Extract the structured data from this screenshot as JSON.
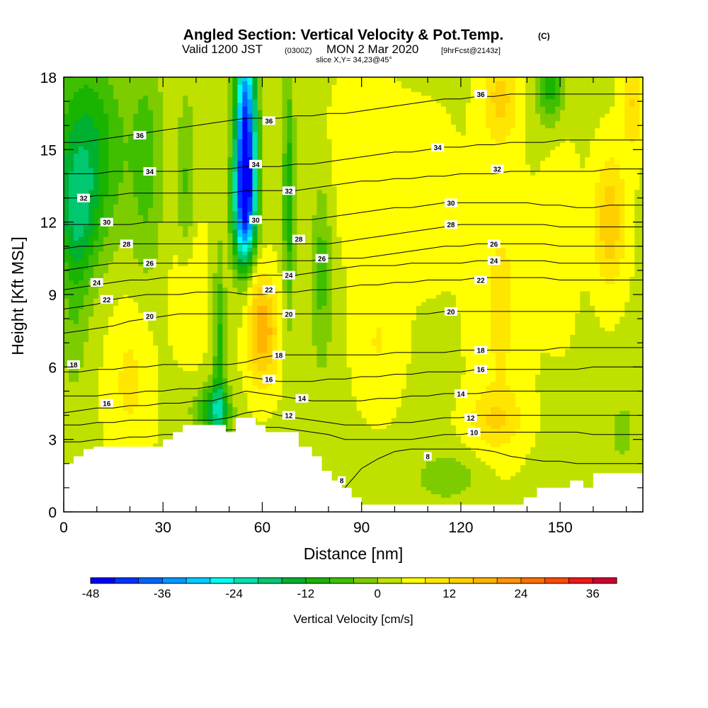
{
  "header": {
    "title": "Angled Section: Vertical Velocity & Pot.Temp.",
    "title_unit": "(C)",
    "valid_prefix": "Valid 1200 JST",
    "valid_utc": "(0300Z)",
    "valid_date": "MON 2 Mar 2020",
    "forecast": "[9hrFcst@2143z]",
    "slice": "slice X,Y= 34,23@45°"
  },
  "chart_data": {
    "type": "heatmap",
    "xlabel": "Distance [nm]",
    "ylabel": "Height [Kft MSL]",
    "xlim": [
      0,
      175
    ],
    "ylim": [
      0,
      18
    ],
    "x_ticks": [
      "0",
      "30",
      "60",
      "90",
      "120",
      "150"
    ],
    "x_tick_values": [
      0,
      30,
      60,
      90,
      120,
      150
    ],
    "y_ticks": [
      "0",
      "3",
      "6",
      "9",
      "12",
      "15",
      "18"
    ],
    "y_tick_values": [
      0,
      3,
      6,
      9,
      12,
      15,
      18
    ],
    "colorbar": {
      "title": "Vertical Velocity [cm/s]",
      "min": -48,
      "max": 40,
      "step": 4,
      "tick_labels": [
        "-48",
        "-36",
        "-24",
        "-12",
        "0",
        "12",
        "24",
        "36"
      ],
      "tick_values": [
        -48,
        -36,
        -24,
        -12,
        0,
        12,
        24,
        36
      ],
      "colors": [
        "#0000ff",
        "#0033ff",
        "#0066ff",
        "#0099ff",
        "#00ccff",
        "#00ffee",
        "#00e0b0",
        "#00c870",
        "#00b030",
        "#18b400",
        "#40bf00",
        "#7dcc00",
        "#c0e000",
        "#ffff00",
        "#ffe600",
        "#ffd000",
        "#ffb400",
        "#ff9500",
        "#ff7000",
        "#ff4b00",
        "#f01818",
        "#d00030",
        "#b00058",
        "#8c0078",
        "#660099"
      ]
    },
    "terrain": [
      [
        0,
        2.0
      ],
      [
        3,
        2.0
      ],
      [
        3,
        2.3
      ],
      [
        6,
        2.3
      ],
      [
        6,
        2.6
      ],
      [
        9,
        2.6
      ],
      [
        9,
        2.7
      ],
      [
        30,
        2.7
      ],
      [
        30,
        3.0
      ],
      [
        33,
        3.0
      ],
      [
        33,
        3.3
      ],
      [
        36,
        3.3
      ],
      [
        36,
        3.6
      ],
      [
        49,
        3.6
      ],
      [
        49,
        3.3
      ],
      [
        52,
        3.3
      ],
      [
        52,
        3.9
      ],
      [
        58,
        3.9
      ],
      [
        58,
        3.6
      ],
      [
        61,
        3.6
      ],
      [
        61,
        3.3
      ],
      [
        71,
        3.3
      ],
      [
        71,
        2.7
      ],
      [
        75,
        2.7
      ],
      [
        75,
        2.3
      ],
      [
        78,
        2.3
      ],
      [
        78,
        1.7
      ],
      [
        81,
        1.7
      ],
      [
        81,
        1.3
      ],
      [
        84,
        1.3
      ],
      [
        84,
        1.0
      ],
      [
        87,
        1.0
      ],
      [
        87,
        0.6
      ],
      [
        90,
        0.6
      ],
      [
        90,
        0.3
      ],
      [
        139,
        0.3
      ],
      [
        139,
        0.6
      ],
      [
        143,
        0.6
      ],
      [
        143,
        1.0
      ],
      [
        153,
        1.0
      ],
      [
        153,
        1.3
      ],
      [
        157,
        1.3
      ],
      [
        157,
        1.0
      ],
      [
        160,
        1.0
      ],
      [
        160,
        1.6
      ],
      [
        175,
        1.6
      ]
    ],
    "isentropes": [
      {
        "theta": 8,
        "heights": [
          -1,
          -1,
          -1,
          -1,
          -1,
          -1,
          -1,
          -1,
          -1,
          -1,
          -1,
          -1,
          -1,
          -1,
          -1,
          -1,
          -1,
          1.0,
          1.8,
          2.2,
          2.5,
          2.6,
          2.6,
          2.6,
          2.6,
          2.6,
          2.5,
          2.3,
          2.2,
          2.1,
          2.1,
          2.0,
          2.0,
          2.0,
          2.0,
          2.0
        ]
      },
      {
        "theta": 10,
        "heights": [
          2.9,
          2.9,
          3.0,
          3.0,
          3.1,
          3.1,
          3.2,
          3.2,
          3.3,
          3.3,
          3.4,
          3.4,
          3.5,
          3.5,
          3.4,
          3.3,
          3.2,
          3.0,
          3.0,
          3.0,
          3.0,
          3.0,
          3.1,
          3.2,
          3.2,
          3.3,
          3.3,
          3.3,
          3.3,
          3.3,
          3.3,
          3.3,
          3.2,
          3.2,
          3.2,
          3.2
        ]
      },
      {
        "theta": 12,
        "heights": [
          3.6,
          3.6,
          3.7,
          3.7,
          3.8,
          3.8,
          3.8,
          3.8,
          3.8,
          3.8,
          3.9,
          4.1,
          4.2,
          4.0,
          3.9,
          3.8,
          3.7,
          3.6,
          3.6,
          3.6,
          3.7,
          3.7,
          3.8,
          3.9,
          3.9,
          4.0,
          4.0,
          4.0,
          4.0,
          4.0,
          4.0,
          4.0,
          4.0,
          4.0,
          4.0,
          4.0
        ]
      },
      {
        "theta": 14,
        "heights": [
          4.1,
          4.2,
          4.3,
          4.3,
          4.4,
          4.4,
          4.5,
          4.5,
          4.6,
          4.6,
          4.8,
          5.0,
          4.9,
          4.8,
          4.7,
          4.6,
          4.6,
          4.6,
          4.6,
          4.7,
          4.7,
          4.8,
          4.8,
          4.9,
          4.9,
          4.9,
          5.0,
          5.0,
          5.0,
          5.0,
          5.0,
          5.0,
          5.0,
          5.0,
          5.0,
          5.0
        ]
      },
      {
        "theta": 16,
        "heights": [
          4.8,
          4.8,
          4.8,
          4.9,
          4.9,
          5.0,
          5.0,
          5.1,
          5.1,
          5.2,
          5.4,
          5.6,
          5.5,
          5.4,
          5.4,
          5.4,
          5.5,
          5.5,
          5.6,
          5.6,
          5.7,
          5.7,
          5.8,
          5.8,
          5.8,
          5.9,
          5.9,
          5.9,
          5.9,
          5.9,
          5.9,
          5.9,
          6.0,
          6.0,
          6.0,
          6.0
        ]
      },
      {
        "theta": 18,
        "heights": [
          5.8,
          5.8,
          5.9,
          5.9,
          6.0,
          6.0,
          6.1,
          6.1,
          6.1,
          6.1,
          6.1,
          6.2,
          6.4,
          6.5,
          6.5,
          6.5,
          6.5,
          6.5,
          6.5,
          6.5,
          6.6,
          6.6,
          6.6,
          6.6,
          6.7,
          6.7,
          6.7,
          6.7,
          6.7,
          6.7,
          6.8,
          6.8,
          6.8,
          6.8,
          6.8,
          6.8
        ]
      },
      {
        "theta": 20,
        "heights": [
          7.4,
          7.5,
          7.6,
          7.7,
          7.9,
          8.0,
          8.1,
          8.2,
          8.2,
          8.2,
          8.2,
          8.2,
          8.2,
          8.2,
          8.2,
          8.2,
          8.2,
          8.2,
          8.2,
          8.2,
          8.2,
          8.2,
          8.2,
          8.3,
          8.3,
          8.3,
          8.3,
          8.3,
          8.3,
          8.3,
          8.3,
          8.3,
          8.3,
          8.3,
          8.3,
          8.3
        ]
      },
      {
        "theta": 22,
        "heights": [
          8.4,
          8.5,
          8.6,
          8.8,
          8.9,
          9.0,
          9.0,
          9.0,
          9.1,
          9.1,
          9.1,
          9.0,
          9.0,
          9.1,
          9.1,
          9.2,
          9.2,
          9.3,
          9.4,
          9.4,
          9.5,
          9.5,
          9.6,
          9.6,
          9.6,
          9.7,
          9.7,
          9.7,
          9.7,
          9.7,
          9.6,
          9.6,
          9.6,
          9.6,
          9.6,
          9.6
        ]
      },
      {
        "theta": 24,
        "heights": [
          9.2,
          9.3,
          9.4,
          9.5,
          9.6,
          9.6,
          9.7,
          9.7,
          9.7,
          9.7,
          9.7,
          9.7,
          9.8,
          9.8,
          9.8,
          9.9,
          10.0,
          10.1,
          10.2,
          10.2,
          10.2,
          10.3,
          10.3,
          10.3,
          10.3,
          10.4,
          10.4,
          10.4,
          10.4,
          10.4,
          10.3,
          10.3,
          10.3,
          10.3,
          10.3,
          10.3
        ]
      },
      {
        "theta": 26,
        "heights": [
          10.0,
          10.1,
          10.2,
          10.3,
          10.3,
          10.3,
          10.3,
          10.3,
          10.3,
          10.3,
          10.3,
          10.3,
          10.3,
          10.4,
          10.4,
          10.4,
          10.5,
          10.5,
          10.5,
          10.6,
          10.7,
          10.8,
          10.9,
          11.0,
          11.0,
          11.1,
          11.1,
          11.1,
          11.1,
          11.1,
          11.0,
          11.0,
          11.0,
          11.0,
          11.0,
          11.0
        ]
      },
      {
        "theta": 28,
        "heights": [
          10.9,
          11.0,
          11.0,
          11.1,
          11.1,
          11.1,
          11.1,
          11.1,
          11.1,
          11.1,
          11.1,
          11.1,
          11.1,
          11.1,
          11.1,
          11.1,
          11.1,
          11.2,
          11.3,
          11.4,
          11.5,
          11.6,
          11.7,
          11.8,
          11.9,
          11.9,
          11.9,
          11.9,
          11.9,
          11.9,
          11.8,
          11.8,
          11.8,
          11.8,
          11.8,
          11.8
        ]
      },
      {
        "theta": 30,
        "heights": [
          11.9,
          11.9,
          11.9,
          11.9,
          11.9,
          12.0,
          12.0,
          12.0,
          12.0,
          12.0,
          12.0,
          12.0,
          12.1,
          12.1,
          12.1,
          12.1,
          12.2,
          12.3,
          12.4,
          12.5,
          12.6,
          12.6,
          12.7,
          12.8,
          12.8,
          12.8,
          12.8,
          12.8,
          12.8,
          12.7,
          12.7,
          12.6,
          12.6,
          12.7,
          12.7,
          12.7
        ]
      },
      {
        "theta": 32,
        "heights": [
          13.0,
          13.0,
          13.1,
          13.1,
          13.2,
          13.2,
          13.2,
          13.2,
          13.2,
          13.2,
          13.2,
          13.3,
          13.3,
          13.3,
          13.3,
          13.4,
          13.5,
          13.6,
          13.7,
          13.7,
          13.8,
          13.8,
          13.9,
          13.9,
          14.0,
          14.0,
          14.0,
          14.1,
          14.1,
          14.1,
          14.1,
          14.1,
          14.1,
          14.2,
          14.2,
          14.2
        ]
      },
      {
        "theta": 34,
        "heights": [
          14.0,
          14.0,
          14.0,
          14.1,
          14.1,
          14.1,
          14.1,
          14.1,
          14.2,
          14.2,
          14.2,
          14.3,
          14.3,
          14.3,
          14.4,
          14.4,
          14.5,
          14.6,
          14.7,
          14.8,
          14.9,
          14.9,
          15.0,
          15.1,
          15.1,
          15.2,
          15.2,
          15.3,
          15.3,
          15.3,
          15.4,
          15.4,
          15.4,
          15.4,
          15.4,
          15.4
        ]
      },
      {
        "theta": 36,
        "heights": [
          15.3,
          15.3,
          15.4,
          15.5,
          15.6,
          15.7,
          15.8,
          15.9,
          16.0,
          16.1,
          16.2,
          16.3,
          16.3,
          16.3,
          16.4,
          16.4,
          16.5,
          16.5,
          16.6,
          16.7,
          16.8,
          16.9,
          17.0,
          17.1,
          17.1,
          17.2,
          17.2,
          17.3,
          17.3,
          17.3,
          17.3,
          17.3,
          17.3,
          17.3,
          17.3,
          17.3
        ]
      }
    ],
    "contour_labels": [
      {
        "text": "36",
        "x": 23,
        "y": 15.6
      },
      {
        "text": "34",
        "x": 26,
        "y": 14.1
      },
      {
        "text": "32",
        "x": 6,
        "y": 13.0
      },
      {
        "text": "30",
        "x": 13,
        "y": 12.0
      },
      {
        "text": "28",
        "x": 19,
        "y": 11.1
      },
      {
        "text": "26",
        "x": 26,
        "y": 10.3
      },
      {
        "text": "24",
        "x": 10,
        "y": 9.5
      },
      {
        "text": "22",
        "x": 13,
        "y": 8.8
      },
      {
        "text": "20",
        "x": 26,
        "y": 8.1
      },
      {
        "text": "18",
        "x": 3,
        "y": 6.1
      },
      {
        "text": "16",
        "x": 13,
        "y": 4.5
      },
      {
        "text": "36",
        "x": 62,
        "y": 16.2
      },
      {
        "text": "34",
        "x": 58,
        "y": 14.4
      },
      {
        "text": "32",
        "x": 68,
        "y": 13.3
      },
      {
        "text": "30",
        "x": 58,
        "y": 12.1
      },
      {
        "text": "28",
        "x": 71,
        "y": 11.3
      },
      {
        "text": "26",
        "x": 78,
        "y": 10.5
      },
      {
        "text": "24",
        "x": 68,
        "y": 9.8
      },
      {
        "text": "22",
        "x": 62,
        "y": 9.2
      },
      {
        "text": "20",
        "x": 68,
        "y": 8.2
      },
      {
        "text": "18",
        "x": 65,
        "y": 6.5
      },
      {
        "text": "16",
        "x": 62,
        "y": 5.5
      },
      {
        "text": "14",
        "x": 72,
        "y": 4.7
      },
      {
        "text": "12",
        "x": 68,
        "y": 4.0
      },
      {
        "text": "36",
        "x": 126,
        "y": 17.3
      },
      {
        "text": "34",
        "x": 113,
        "y": 15.1
      },
      {
        "text": "32",
        "x": 131,
        "y": 14.2
      },
      {
        "text": "30",
        "x": 117,
        "y": 12.8
      },
      {
        "text": "28",
        "x": 117,
        "y": 11.9
      },
      {
        "text": "26",
        "x": 130,
        "y": 11.1
      },
      {
        "text": "24",
        "x": 130,
        "y": 10.4
      },
      {
        "text": "22",
        "x": 126,
        "y": 9.6
      },
      {
        "text": "20",
        "x": 117,
        "y": 8.3
      },
      {
        "text": "18",
        "x": 126,
        "y": 6.7
      },
      {
        "text": "16",
        "x": 126,
        "y": 5.9
      },
      {
        "text": "14",
        "x": 120,
        "y": 4.9
      },
      {
        "text": "12",
        "x": 123,
        "y": 3.9
      },
      {
        "text": "10",
        "x": 124,
        "y": 3.3
      },
      {
        "text": "8",
        "x": 110,
        "y": 2.3
      },
      {
        "text": "8",
        "x": 84,
        "y": 1.3
      }
    ],
    "velocity_features": [
      {
        "x": 55,
        "y": 15.5,
        "sx": 2.2,
        "sy": 3.2,
        "w": -46
      },
      {
        "x": 54.5,
        "y": 12.5,
        "sx": 2.5,
        "sy": 1.8,
        "w": -24
      },
      {
        "x": 68,
        "y": 13.0,
        "sx": 1.2,
        "sy": 3.5,
        "w": -14
      },
      {
        "x": 47,
        "y": 7.0,
        "sx": 1.2,
        "sy": 2.5,
        "w": -12
      },
      {
        "x": 46,
        "y": 4.2,
        "sx": 3.0,
        "sy": 0.8,
        "w": -20
      },
      {
        "x": 7,
        "y": 15.0,
        "sx": 8.0,
        "sy": 3.0,
        "w": -16
      },
      {
        "x": 4,
        "y": 12.0,
        "sx": 4.0,
        "sy": 2.0,
        "w": -12
      },
      {
        "x": 25,
        "y": 14.5,
        "sx": 3.5,
        "sy": 3.5,
        "w": -8
      },
      {
        "x": 37,
        "y": 13.0,
        "sx": 2.0,
        "sy": 3.0,
        "w": -8
      },
      {
        "x": 78,
        "y": 11.0,
        "sx": 2.0,
        "sy": 2.0,
        "w": -8
      },
      {
        "x": 78,
        "y": 7.5,
        "sx": 2.0,
        "sy": 1.5,
        "w": -5
      },
      {
        "x": 147,
        "y": 17.8,
        "sx": 3.0,
        "sy": 1.2,
        "w": -14
      },
      {
        "x": 116,
        "y": 1.5,
        "sx": 6.0,
        "sy": 0.6,
        "w": -6
      },
      {
        "x": 169,
        "y": 3.5,
        "sx": 3.0,
        "sy": 1.0,
        "w": -4
      },
      {
        "x": 3,
        "y": 7.5,
        "sx": 3.0,
        "sy": 2.0,
        "w": -5
      },
      {
        "x": 40,
        "y": 4.2,
        "sx": 3.0,
        "sy": 0.6,
        "w": -3
      },
      {
        "x": 60,
        "y": 7.5,
        "sx": 3.5,
        "sy": 1.6,
        "w": 16
      },
      {
        "x": 56,
        "y": 9.8,
        "sx": 2.5,
        "sy": 1.2,
        "w": 6
      },
      {
        "x": 165,
        "y": 12.0,
        "sx": 3.5,
        "sy": 2.0,
        "w": 12
      },
      {
        "x": 132,
        "y": 17.2,
        "sx": 4.0,
        "sy": 1.3,
        "w": 10
      },
      {
        "x": 172,
        "y": 17.0,
        "sx": 2.5,
        "sy": 1.5,
        "w": 9
      },
      {
        "x": 38,
        "y": 9.3,
        "sx": 3.5,
        "sy": 2.0,
        "w": 7
      },
      {
        "x": 20,
        "y": 5.5,
        "sx": 5.0,
        "sy": 2.5,
        "w": 6
      },
      {
        "x": 95,
        "y": 7.0,
        "sx": 5.0,
        "sy": 2.0,
        "w": 5
      },
      {
        "x": 132,
        "y": 8.5,
        "sx": 6.0,
        "sy": 4.0,
        "w": 6
      },
      {
        "x": 130,
        "y": 3.8,
        "sx": 6.0,
        "sy": 0.8,
        "w": 7
      },
      {
        "x": 150,
        "y": 11.5,
        "sx": 4.0,
        "sy": 3.0,
        "w": 4
      },
      {
        "x": 110,
        "y": 13.0,
        "sx": 8.0,
        "sy": 3.0,
        "w": 2.5
      },
      {
        "x": 90,
        "y": 14.5,
        "sx": 8.0,
        "sy": 3.0,
        "w": 3
      },
      {
        "x": 110,
        "y": 1.0,
        "sx": 12.0,
        "sy": 0.8,
        "w": -1.0
      },
      {
        "x": 165,
        "y": 2.2,
        "sx": 8.0,
        "sy": 0.8,
        "w": -1.0
      }
    ],
    "background_velocity": 3.0
  }
}
